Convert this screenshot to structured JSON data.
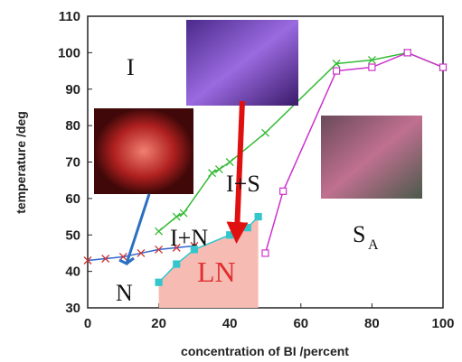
{
  "chart_data": {
    "type": "line",
    "xlabel": "concentration of BI /percent",
    "ylabel": "temperature /deg",
    "xlim": [
      0,
      100
    ],
    "xticks": [
      0,
      20,
      40,
      60,
      80,
      100
    ],
    "ylim": [
      30,
      110
    ],
    "yticks": [
      30,
      40,
      50,
      60,
      70,
      80,
      90,
      100,
      110
    ],
    "annotations": [
      "I",
      "I+S",
      "I+N",
      "LN",
      "N",
      "S",
      "A"
    ],
    "series": [
      {
        "color": "#3366cc",
        "marker": "x",
        "marker_color": "#cc3333",
        "x": [
          0,
          5,
          10,
          15,
          20,
          25,
          30
        ],
        "values": [
          43,
          43.5,
          44,
          45,
          46,
          46.5,
          47
        ]
      },
      {
        "color": "#33bb33",
        "marker": "x",
        "x": [
          20,
          25,
          27,
          35,
          37,
          40,
          50,
          70,
          80,
          90,
          100
        ],
        "values": [
          51,
          55,
          56,
          67,
          68,
          70,
          78,
          97,
          98,
          100,
          96
        ]
      },
      {
        "color": "#cc33cc",
        "marker": "square",
        "x": [
          50,
          55,
          70,
          80,
          90,
          100
        ],
        "values": [
          45,
          62,
          95,
          96,
          100,
          96
        ]
      },
      {
        "color": "#33c6cc",
        "marker": "square",
        "fill": "#f6bcb4",
        "x": [
          20,
          25,
          30,
          40,
          45,
          48
        ],
        "values": [
          37,
          42,
          46,
          50,
          52,
          55
        ]
      }
    ]
  }
}
